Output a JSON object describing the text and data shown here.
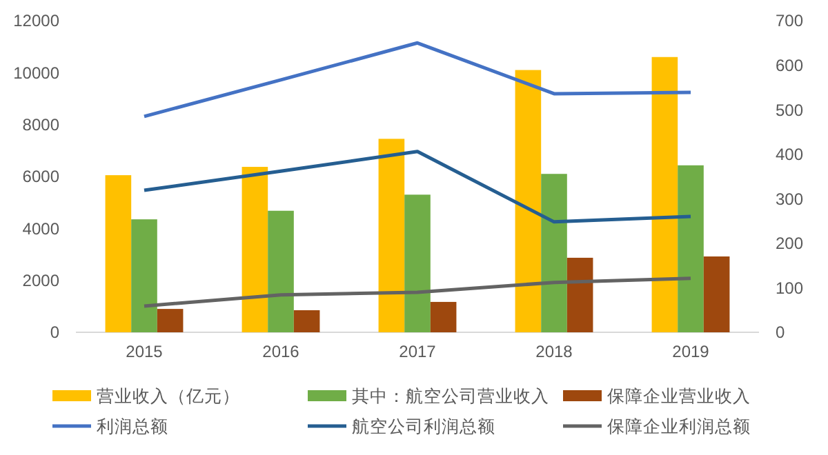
{
  "chart_data": {
    "type": "bar",
    "categories": [
      "2015",
      "2016",
      "2017",
      "2018",
      "2019"
    ],
    "series": [
      {
        "name": "营业收入（亿元）",
        "color": "#ffc000",
        "values": [
          6050,
          6370,
          7450,
          10100,
          10600
        ]
      },
      {
        "name": "其中：航空公司营业收入",
        "color": "#70ad47",
        "values": [
          4350,
          4680,
          5300,
          6100,
          6430
        ]
      },
      {
        "name": "保障企业营业收入",
        "color": "#9e480e",
        "values": [
          900,
          850,
          1170,
          2870,
          2920
        ]
      },
      {
        "name": "利润总额",
        "type": "line",
        "axis": "y2",
        "color": "#4472c4",
        "values": [
          485,
          567,
          650,
          536,
          539
        ]
      },
      {
        "name": "航空公司利润总额",
        "type": "line",
        "axis": "y2",
        "color": "#255e91",
        "values": [
          319,
          362,
          406,
          248,
          260
        ]
      },
      {
        "name": "保障企业利润总额",
        "type": "line",
        "axis": "y2",
        "color": "#636363",
        "values": [
          59,
          84,
          90,
          112,
          121
        ]
      }
    ],
    "ylim": [
      0,
      12000
    ],
    "yticks": [
      0,
      2000,
      4000,
      6000,
      8000,
      10000,
      12000
    ],
    "y2lim": [
      0,
      700
    ],
    "y2ticks": [
      0,
      100,
      200,
      300,
      400,
      500,
      600,
      700
    ],
    "grid": false,
    "legend": "bottom",
    "marker": "none",
    "line_style": "solid"
  }
}
